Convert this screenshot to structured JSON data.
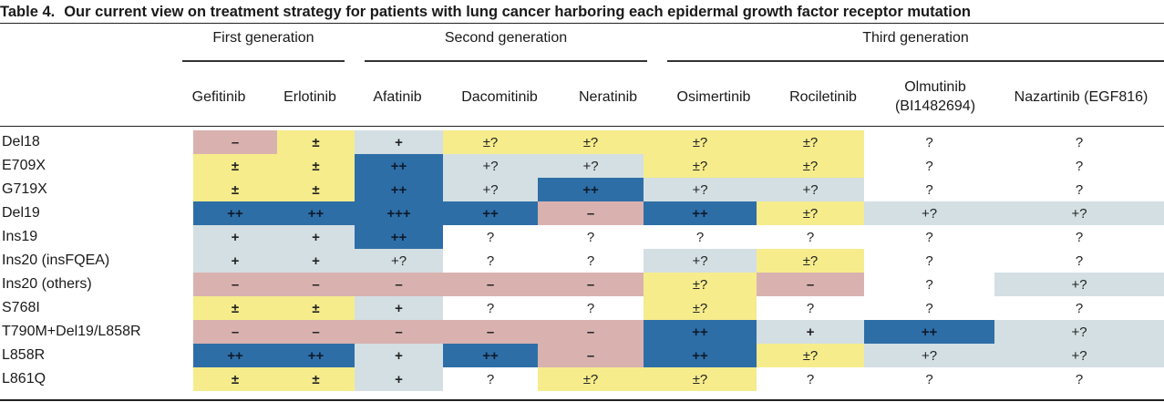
{
  "caption": {
    "label": "Table 4.",
    "text": "Our current view on treatment strategy for patients with lung cancer harboring each epidermal growth factor receptor mutation"
  },
  "groups": [
    {
      "label": "First generation"
    },
    {
      "label": "Second generation"
    },
    {
      "label": "Third generation"
    }
  ],
  "columns": [
    {
      "line1": "Gefitinib",
      "line2": ""
    },
    {
      "line1": "Erlotinib",
      "line2": ""
    },
    {
      "line1": "Afatinib",
      "line2": ""
    },
    {
      "line1": "Dacomitinib",
      "line2": ""
    },
    {
      "line1": "Neratinib",
      "line2": ""
    },
    {
      "line1": "Osimertinib",
      "line2": ""
    },
    {
      "line1": "Rociletinib",
      "line2": ""
    },
    {
      "line1": "Olmutinib",
      "line2": "(BI1482694)"
    },
    {
      "line1": "Nazartinib (EGF816)",
      "line2": ""
    }
  ],
  "legend_colors": {
    "minus": "#d9b2b0",
    "plus_minus": "#f6ec8c",
    "plus": "#d3dfe3",
    "strong": "#2e6ea7",
    "unknown": "#ffffff"
  },
  "rows": [
    {
      "label": "Del18",
      "cells": [
        {
          "v": "–",
          "c": "pink"
        },
        {
          "v": "±",
          "c": "yellow"
        },
        {
          "v": "+",
          "c": "gray"
        },
        {
          "v": "±?",
          "c": "yellow"
        },
        {
          "v": "±?",
          "c": "yellow"
        },
        {
          "v": "±?",
          "c": "yellow"
        },
        {
          "v": "±?",
          "c": "yellow"
        },
        {
          "v": "?",
          "c": "white"
        },
        {
          "v": "?",
          "c": "white"
        }
      ]
    },
    {
      "label": "E709X",
      "cells": [
        {
          "v": "±",
          "c": "yellow"
        },
        {
          "v": "±",
          "c": "yellow"
        },
        {
          "v": "++",
          "c": "blue"
        },
        {
          "v": "+?",
          "c": "gray"
        },
        {
          "v": "+?",
          "c": "gray"
        },
        {
          "v": "±?",
          "c": "yellow"
        },
        {
          "v": "±?",
          "c": "yellow"
        },
        {
          "v": "?",
          "c": "white"
        },
        {
          "v": "?",
          "c": "white"
        }
      ]
    },
    {
      "label": "G719X",
      "cells": [
        {
          "v": "±",
          "c": "yellow"
        },
        {
          "v": "±",
          "c": "yellow"
        },
        {
          "v": "++",
          "c": "blue"
        },
        {
          "v": "+?",
          "c": "gray"
        },
        {
          "v": "++",
          "c": "blue"
        },
        {
          "v": "+?",
          "c": "gray"
        },
        {
          "v": "+?",
          "c": "gray"
        },
        {
          "v": "?",
          "c": "white"
        },
        {
          "v": "?",
          "c": "white"
        }
      ]
    },
    {
      "label": "Del19",
      "cells": [
        {
          "v": "++",
          "c": "blue"
        },
        {
          "v": "++",
          "c": "blue"
        },
        {
          "v": "+++",
          "c": "blue"
        },
        {
          "v": "++",
          "c": "blue"
        },
        {
          "v": "–",
          "c": "pink"
        },
        {
          "v": "++",
          "c": "blue"
        },
        {
          "v": "±?",
          "c": "yellow"
        },
        {
          "v": "+?",
          "c": "gray"
        },
        {
          "v": "+?",
          "c": "gray"
        }
      ]
    },
    {
      "label": "Ins19",
      "cells": [
        {
          "v": "+",
          "c": "gray"
        },
        {
          "v": "+",
          "c": "gray"
        },
        {
          "v": "++",
          "c": "blue"
        },
        {
          "v": "?",
          "c": "white"
        },
        {
          "v": "?",
          "c": "white"
        },
        {
          "v": "?",
          "c": "white"
        },
        {
          "v": "?",
          "c": "white"
        },
        {
          "v": "?",
          "c": "white"
        },
        {
          "v": "?",
          "c": "white"
        }
      ]
    },
    {
      "label": "Ins20 (insFQEA)",
      "cells": [
        {
          "v": "+",
          "c": "gray"
        },
        {
          "v": "+",
          "c": "gray"
        },
        {
          "v": "+?",
          "c": "gray"
        },
        {
          "v": "?",
          "c": "white"
        },
        {
          "v": "?",
          "c": "white"
        },
        {
          "v": "+?",
          "c": "gray"
        },
        {
          "v": "±?",
          "c": "yellow"
        },
        {
          "v": "?",
          "c": "white"
        },
        {
          "v": "?",
          "c": "white"
        }
      ]
    },
    {
      "label": "Ins20 (others)",
      "cells": [
        {
          "v": "–",
          "c": "pink"
        },
        {
          "v": "–",
          "c": "pink"
        },
        {
          "v": "–",
          "c": "pink"
        },
        {
          "v": "–",
          "c": "pink"
        },
        {
          "v": "–",
          "c": "pink"
        },
        {
          "v": "±?",
          "c": "yellow"
        },
        {
          "v": "–",
          "c": "pink"
        },
        {
          "v": "?",
          "c": "white"
        },
        {
          "v": "+?",
          "c": "gray"
        }
      ]
    },
    {
      "label": "S768I",
      "cells": [
        {
          "v": "±",
          "c": "yellow"
        },
        {
          "v": "±",
          "c": "yellow"
        },
        {
          "v": "+",
          "c": "gray"
        },
        {
          "v": "?",
          "c": "white"
        },
        {
          "v": "?",
          "c": "white"
        },
        {
          "v": "±?",
          "c": "yellow"
        },
        {
          "v": "?",
          "c": "white"
        },
        {
          "v": "?",
          "c": "white"
        },
        {
          "v": "?",
          "c": "white"
        }
      ]
    },
    {
      "label": "T790M+Del19/L858R",
      "cells": [
        {
          "v": "–",
          "c": "pink"
        },
        {
          "v": "–",
          "c": "pink"
        },
        {
          "v": "–",
          "c": "pink"
        },
        {
          "v": "–",
          "c": "pink"
        },
        {
          "v": "–",
          "c": "pink"
        },
        {
          "v": "++",
          "c": "blue"
        },
        {
          "v": "+",
          "c": "gray"
        },
        {
          "v": "++",
          "c": "blue"
        },
        {
          "v": "+?",
          "c": "gray"
        }
      ]
    },
    {
      "label": "L858R",
      "cells": [
        {
          "v": "++",
          "c": "blue"
        },
        {
          "v": "++",
          "c": "blue"
        },
        {
          "v": "+",
          "c": "gray"
        },
        {
          "v": "++",
          "c": "blue"
        },
        {
          "v": "–",
          "c": "pink"
        },
        {
          "v": "++",
          "c": "blue"
        },
        {
          "v": "±?",
          "c": "yellow"
        },
        {
          "v": "+?",
          "c": "gray"
        },
        {
          "v": "+?",
          "c": "gray"
        }
      ]
    },
    {
      "label": "L861Q",
      "cells": [
        {
          "v": "±",
          "c": "yellow"
        },
        {
          "v": "±",
          "c": "yellow"
        },
        {
          "v": "+",
          "c": "gray"
        },
        {
          "v": "?",
          "c": "white"
        },
        {
          "v": "±?",
          "c": "yellow"
        },
        {
          "v": "±?",
          "c": "yellow"
        },
        {
          "v": "?",
          "c": "white"
        },
        {
          "v": "?",
          "c": "white"
        },
        {
          "v": "?",
          "c": "white"
        }
      ]
    }
  ]
}
